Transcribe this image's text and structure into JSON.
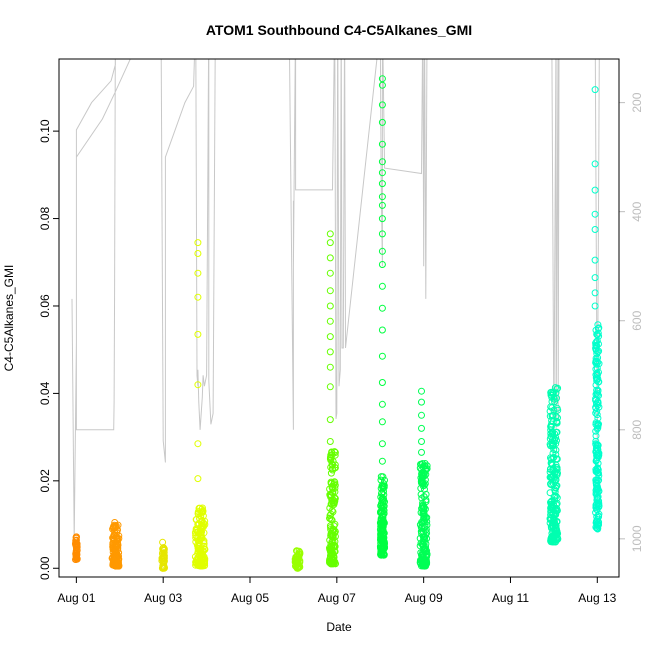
{
  "chart_data": {
    "type": "scatter",
    "title": "ATOM1 Southbound C4-C5Alkanes_GMI",
    "xlabel": "Date",
    "ylabel": "C4-C5Alkanes_GMI",
    "x_tick_labels": [
      "Aug 01",
      "Aug 03",
      "Aug 05",
      "Aug 07",
      "Aug 09",
      "Aug 11",
      "Aug 13"
    ],
    "x_tick_values": [
      0,
      2,
      4,
      6,
      8,
      10,
      12
    ],
    "x_range_days_since_aug01": [
      -0.4,
      12.5
    ],
    "y_ticks": [
      0.0,
      0.02,
      0.04,
      0.06,
      0.08,
      0.1
    ],
    "y_tick_labels": [
      "0.00",
      "0.02",
      "0.04",
      "0.06",
      "0.08",
      "0.10"
    ],
    "ylim": [
      -0.002,
      0.1165
    ],
    "y2_ticks": [
      200,
      400,
      600,
      800,
      1000
    ],
    "y2_tick_labels": [
      "200",
      "400",
      "600",
      "800",
      "1000"
    ],
    "y2lim_top_to_bottom": [
      120,
      1070
    ],
    "y2_color": "#bdbdbd",
    "altitude_color": "#c8c8c8",
    "marker": "open-circle",
    "clusters": [
      {
        "center_day": 0.0,
        "width": 0.04,
        "ymin": 0.002,
        "ymax": 0.0075,
        "color": "#ff8c00",
        "n": 40
      },
      {
        "center_day": 0.9,
        "width": 0.16,
        "ymin": 0.0005,
        "ymax": 0.011,
        "color": "#ff9900",
        "n": 120
      },
      {
        "center_day": 2.0,
        "width": 0.06,
        "ymin": 0.0,
        "ymax": 0.006,
        "color": "#e6e600",
        "n": 40
      },
      {
        "center_day": 2.85,
        "width": 0.22,
        "ymin": 0.0005,
        "ymax": 0.014,
        "color": "#e0ff00",
        "n": 140
      },
      {
        "center_day": 5.1,
        "width": 0.12,
        "ymin": 0.0,
        "ymax": 0.004,
        "color": "#99ff00",
        "n": 50
      },
      {
        "center_day": 5.9,
        "width": 0.14,
        "ymin": 0.001,
        "ymax": 0.027,
        "color": "#66ff00",
        "n": 160
      },
      {
        "center_day": 7.05,
        "width": 0.1,
        "ymin": 0.003,
        "ymax": 0.021,
        "color": "#00ff40",
        "n": 140
      },
      {
        "center_day": 8.0,
        "width": 0.16,
        "ymin": 0.0005,
        "ymax": 0.024,
        "color": "#00ff55",
        "n": 160
      },
      {
        "center_day": 11.0,
        "width": 0.18,
        "ymin": 0.006,
        "ymax": 0.042,
        "color": "#00ffb0",
        "n": 220
      },
      {
        "center_day": 12.0,
        "width": 0.08,
        "ymin": 0.009,
        "ymax": 0.056,
        "color": "#00ffcc",
        "n": 180
      }
    ],
    "outliers": [
      {
        "day": 2.8,
        "y": 0.0745,
        "color": "#e0ff00"
      },
      {
        "day": 2.8,
        "y": 0.072,
        "color": "#e0ff00"
      },
      {
        "day": 2.8,
        "y": 0.0675,
        "color": "#e0ff00"
      },
      {
        "day": 2.8,
        "y": 0.062,
        "color": "#e0ff00"
      },
      {
        "day": 2.8,
        "y": 0.0535,
        "color": "#e0ff00"
      },
      {
        "day": 2.8,
        "y": 0.042,
        "color": "#e0ff00"
      },
      {
        "day": 2.8,
        "y": 0.0285,
        "color": "#e0ff00"
      },
      {
        "day": 2.8,
        "y": 0.0205,
        "color": "#e0ff00"
      },
      {
        "day": 5.85,
        "y": 0.0765,
        "color": "#66ff00"
      },
      {
        "day": 5.85,
        "y": 0.0745,
        "color": "#66ff00"
      },
      {
        "day": 5.85,
        "y": 0.071,
        "color": "#66ff00"
      },
      {
        "day": 5.85,
        "y": 0.0675,
        "color": "#66ff00"
      },
      {
        "day": 5.85,
        "y": 0.0635,
        "color": "#66ff00"
      },
      {
        "day": 5.85,
        "y": 0.06,
        "color": "#66ff00"
      },
      {
        "day": 5.85,
        "y": 0.0565,
        "color": "#66ff00"
      },
      {
        "day": 5.85,
        "y": 0.053,
        "color": "#66ff00"
      },
      {
        "day": 5.85,
        "y": 0.0495,
        "color": "#66ff00"
      },
      {
        "day": 5.85,
        "y": 0.046,
        "color": "#66ff00"
      },
      {
        "day": 5.85,
        "y": 0.0415,
        "color": "#66ff00"
      },
      {
        "day": 5.85,
        "y": 0.034,
        "color": "#66ff00"
      },
      {
        "day": 5.85,
        "y": 0.029,
        "color": "#66ff00"
      },
      {
        "day": 7.05,
        "y": 0.112,
        "color": "#00ff40"
      },
      {
        "day": 7.05,
        "y": 0.1105,
        "color": "#00ff40"
      },
      {
        "day": 7.05,
        "y": 0.106,
        "color": "#00ff40"
      },
      {
        "day": 7.05,
        "y": 0.102,
        "color": "#00ff40"
      },
      {
        "day": 7.05,
        "y": 0.097,
        "color": "#00ff40"
      },
      {
        "day": 7.05,
        "y": 0.093,
        "color": "#00ff40"
      },
      {
        "day": 7.05,
        "y": 0.0905,
        "color": "#00ff40"
      },
      {
        "day": 7.05,
        "y": 0.088,
        "color": "#00ff40"
      },
      {
        "day": 7.05,
        "y": 0.085,
        "color": "#00ff40"
      },
      {
        "day": 7.05,
        "y": 0.083,
        "color": "#00ff40"
      },
      {
        "day": 7.05,
        "y": 0.08,
        "color": "#00ff40"
      },
      {
        "day": 7.05,
        "y": 0.0765,
        "color": "#00ff40"
      },
      {
        "day": 7.05,
        "y": 0.0725,
        "color": "#00ff40"
      },
      {
        "day": 7.05,
        "y": 0.0695,
        "color": "#00ff40"
      },
      {
        "day": 7.05,
        "y": 0.0645,
        "color": "#00ff40"
      },
      {
        "day": 7.05,
        "y": 0.0595,
        "color": "#00ff40"
      },
      {
        "day": 7.05,
        "y": 0.0545,
        "color": "#00ff40"
      },
      {
        "day": 7.05,
        "y": 0.0485,
        "color": "#00ff40"
      },
      {
        "day": 7.05,
        "y": 0.0425,
        "color": "#00ff40"
      },
      {
        "day": 7.05,
        "y": 0.0375,
        "color": "#00ff40"
      },
      {
        "day": 7.05,
        "y": 0.0335,
        "color": "#00ff40"
      },
      {
        "day": 7.05,
        "y": 0.0285,
        "color": "#00ff40"
      },
      {
        "day": 7.05,
        "y": 0.0245,
        "color": "#00ff40"
      },
      {
        "day": 7.95,
        "y": 0.0405,
        "color": "#00ff55"
      },
      {
        "day": 7.95,
        "y": 0.038,
        "color": "#00ff55"
      },
      {
        "day": 7.95,
        "y": 0.035,
        "color": "#00ff55"
      },
      {
        "day": 7.95,
        "y": 0.032,
        "color": "#00ff55"
      },
      {
        "day": 7.95,
        "y": 0.029,
        "color": "#00ff55"
      },
      {
        "day": 7.95,
        "y": 0.0265,
        "color": "#00ff55"
      },
      {
        "day": 11.95,
        "y": 0.1095,
        "color": "#00ffcc"
      },
      {
        "day": 11.95,
        "y": 0.0925,
        "color": "#00ffcc"
      },
      {
        "day": 11.95,
        "y": 0.0865,
        "color": "#00ffcc"
      },
      {
        "day": 11.95,
        "y": 0.081,
        "color": "#00ffcc"
      },
      {
        "day": 11.95,
        "y": 0.0775,
        "color": "#00ffcc"
      },
      {
        "day": 11.95,
        "y": 0.0705,
        "color": "#00ffcc"
      },
      {
        "day": 11.95,
        "y": 0.0665,
        "color": "#00ffcc"
      },
      {
        "day": 11.95,
        "y": 0.063,
        "color": "#00ffcc"
      },
      {
        "day": 11.95,
        "y": 0.06,
        "color": "#00ffcc"
      }
    ],
    "altitude_trace": [
      [
        -0.1,
        560
      ],
      [
        -0.05,
        1000
      ],
      [
        0.0,
        640
      ],
      [
        0.0,
        250
      ],
      [
        0.35,
        200
      ],
      [
        0.8,
        160
      ],
      [
        0.9,
        130
      ],
      [
        0.9,
        40
      ],
      [
        0.88,
        540
      ],
      [
        0.87,
        750
      ],
      [
        0.86,
        800
      ],
      [
        0.85,
        800
      ],
      [
        0.82,
        800
      ],
      [
        0.0,
        800
      ],
      [
        0.0,
        300
      ],
      [
        0.6,
        230
      ],
      [
        0.9,
        180
      ],
      [
        1.7,
        40
      ],
      [
        1.95,
        40
      ],
      [
        2.0,
        820
      ],
      [
        2.05,
        860
      ],
      [
        2.05,
        800
      ],
      [
        2.05,
        300
      ],
      [
        2.5,
        200
      ],
      [
        2.7,
        170
      ],
      [
        2.75,
        40
      ],
      [
        2.78,
        700
      ],
      [
        2.8,
        720
      ],
      [
        2.8,
        690
      ],
      [
        2.82,
        750
      ],
      [
        2.85,
        800
      ],
      [
        2.9,
        740
      ],
      [
        2.92,
        700
      ],
      [
        2.95,
        720
      ],
      [
        3.0,
        700
      ],
      [
        3.05,
        40
      ],
      [
        3.05,
        710
      ],
      [
        3.1,
        790
      ],
      [
        3.15,
        770
      ],
      [
        3.2,
        80
      ],
      [
        3.4,
        40
      ],
      [
        4.9,
        40
      ],
      [
        5.0,
        800
      ],
      [
        5.0,
        380
      ],
      [
        5.0,
        500
      ],
      [
        5.05,
        40
      ],
      [
        5.05,
        360
      ],
      [
        5.9,
        360
      ],
      [
        5.95,
        40
      ],
      [
        5.98,
        780
      ],
      [
        6.0,
        770
      ],
      [
        6.02,
        40
      ],
      [
        6.05,
        720
      ],
      [
        6.08,
        690
      ],
      [
        6.1,
        40
      ],
      [
        6.12,
        650
      ],
      [
        6.15,
        650
      ],
      [
        6.18,
        40
      ],
      [
        6.2,
        650
      ],
      [
        6.95,
        100
      ],
      [
        7.0,
        40
      ],
      [
        7.02,
        330
      ],
      [
        7.05,
        500
      ],
      [
        7.05,
        40
      ],
      [
        7.1,
        320
      ],
      [
        7.95,
        330
      ],
      [
        7.98,
        40
      ],
      [
        8.0,
        500
      ],
      [
        8.02,
        40
      ],
      [
        8.05,
        560
      ],
      [
        8.08,
        40
      ],
      [
        10.95,
        40
      ],
      [
        11.0,
        800
      ],
      [
        11.05,
        40
      ],
      [
        11.05,
        800
      ],
      [
        11.1,
        40
      ],
      [
        11.1,
        780
      ],
      [
        11.12,
        40
      ],
      [
        11.95,
        40
      ],
      [
        12.0,
        830
      ],
      [
        12.05,
        40
      ]
    ]
  }
}
